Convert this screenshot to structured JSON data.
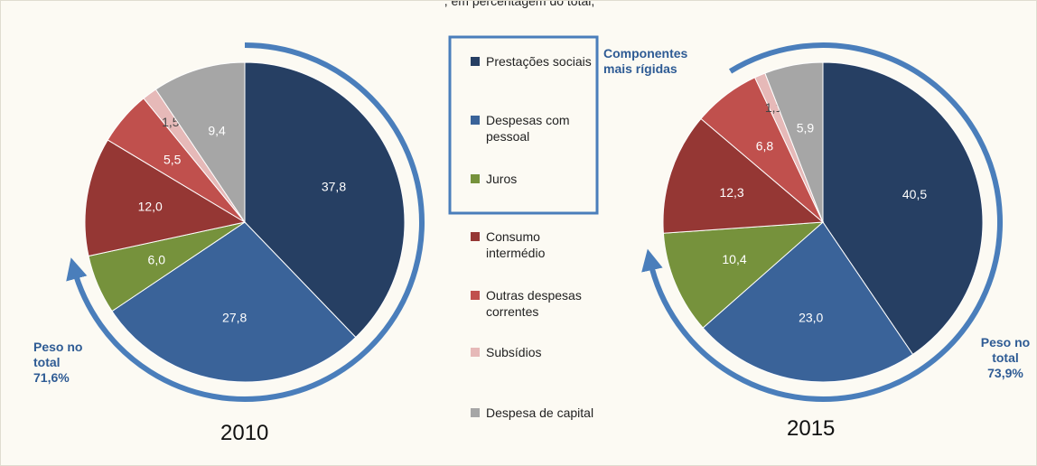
{
  "title": ", em percentagem do total, ",
  "legend": {
    "categories": [
      "Prestações sociais",
      "Despesas com pessoal",
      "Juros",
      "Consumo intermédio",
      "Outras despesas correntes",
      "Subsídios",
      "Despesa de capital"
    ],
    "colors": [
      "#263f63",
      "#3a6399",
      "#76923c",
      "#953734",
      "#c0504d",
      "#e6b9b8",
      "#a6a6a6"
    ],
    "annotation": "Componentes mais rígidas"
  },
  "chart_data": [
    {
      "type": "pie",
      "title": "2010",
      "values": [
        37.8,
        27.8,
        6.0,
        12.0,
        5.5,
        1.5,
        9.4
      ],
      "value_labels": [
        "37,8",
        "27,8",
        "6,0",
        "12,0",
        "5,5",
        "1,5",
        "9,4"
      ],
      "annotation": "Peso no total 71,6%"
    },
    {
      "type": "pie",
      "title": "2015",
      "values": [
        40.5,
        23.0,
        10.4,
        12.3,
        6.8,
        1.1,
        5.9
      ],
      "value_labels": [
        "40,5",
        "23,0",
        "10,4",
        "12,3",
        "6,8",
        "1,1",
        "5,9"
      ],
      "annotation": "Peso no total 73,9%"
    }
  ]
}
